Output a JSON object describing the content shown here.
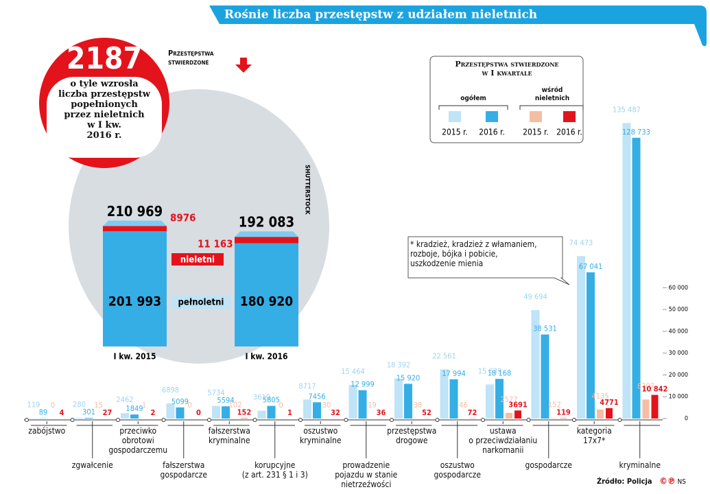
{
  "header": {
    "title": "Rośnie liczba przestępstw z udziałem nieletnich"
  },
  "badge": {
    "number": 2187,
    "text": "o tyle wzrosła\nliczba przestępstw\npopełnionych\nprzez nieletnich\nw I kw.\n2016 r."
  },
  "photo_credit": "SHUTTERSTOCK",
  "annotation": "* kradzież, kradzież z włamaniem,\nrozboje, bójka i pobicie,\nuszkodzenie mienia",
  "source": "Źródło: Policja",
  "agency": "NS",
  "chart_data": [
    {
      "type": "bar",
      "stacked": true,
      "title": "Przestępstwa\nstwierdzone",
      "categories": [
        "I kw. 2015",
        "I kw. 2016"
      ],
      "series": [
        {
          "name": "pełnoletni",
          "color": "#35aee6",
          "values": [
            201993,
            180920
          ],
          "value_labels": [
            "201 993",
            "180 920"
          ]
        },
        {
          "name": "nieletni",
          "color": "#e3131b",
          "values": [
            8976,
            11163
          ],
          "value_labels": [
            "8976",
            "11 163"
          ]
        }
      ],
      "totals": [
        210969,
        192083
      ],
      "total_labels": [
        "210 969",
        "192 083"
      ],
      "ylim": [
        0,
        220000
      ]
    },
    {
      "type": "bar",
      "legend_title": "Przestępstwa stwierdzone\nw I kwartale",
      "legend_groups": [
        "ogółem",
        "wśród\nnieletnich"
      ],
      "categories": [
        "zabójstwo",
        "zgwałcenie",
        "przeciwko\nobrotowi\ngospodarczemu",
        "fałszerstwa\ngospodarcze",
        "fałszerstwa\nkryminalne",
        "korupcyjne\n(z art. 231 § 1 i 3)",
        "oszustwo\nkryminalne",
        "prowadzenie\npojazdu w stanie\nnietrzeźwości",
        "przestępstwa\ndrogowe",
        "oszustwo\ngospodarcze",
        "ustawa\no przeciwdziałaniu\nnarkomanii",
        "gospodarcze",
        "kategoria\n17x7*",
        "kryminalne"
      ],
      "series": [
        {
          "name": "2015 r.",
          "color": "#bfe3f7",
          "values": [
            119,
            280,
            2462,
            6898,
            5734,
            3619,
            8717,
            15464,
            18392,
            22561,
            15639,
            49694,
            74473,
            135487
          ],
          "value_labels": [
            "119",
            "280",
            "2462",
            "6898",
            "5734",
            "3619",
            "8717",
            "15 464",
            "18 392",
            "22 561",
            "15 639",
            "49 694",
            "74 473",
            "135 487"
          ]
        },
        {
          "name": "2016 r.",
          "color": "#35aee6",
          "values": [
            89,
            301,
            1849,
            5099,
            5594,
            5805,
            7456,
            12999,
            15920,
            17994,
            18168,
            38531,
            67041,
            128733
          ],
          "value_labels": [
            "89",
            "301",
            "1849",
            "5099",
            "5594",
            "5805",
            "7456",
            "12 999",
            "15 920",
            "17 994",
            "18 168",
            "38 531",
            "67 041",
            "128 733"
          ]
        },
        {
          "name": "2015 r.",
          "color": "#f6bda3",
          "values": [
            0,
            15,
            1,
            0,
            102,
            0,
            30,
            19,
            38,
            46,
            2577,
            152,
            4135,
            8707
          ],
          "value_labels": [
            "0",
            "15",
            "1",
            "0",
            "102",
            "0",
            "30",
            "19",
            "38",
            "46",
            "2577",
            "152",
            "4135",
            "8707"
          ]
        },
        {
          "name": "2016 r.",
          "color": "#e3131b",
          "values": [
            4,
            27,
            2,
            0,
            152,
            1,
            32,
            36,
            52,
            72,
            3691,
            119,
            4771,
            10842
          ],
          "value_labels": [
            "4",
            "27",
            "2",
            "0",
            "152",
            "1",
            "32",
            "36",
            "52",
            "72",
            "3691",
            "119",
            "4771",
            "10 842"
          ]
        }
      ],
      "ylim": [
        0,
        140000
      ],
      "yticks": [
        0,
        {
          "value": 10000,
          "label": "10 000"
        },
        {
          "value": 20000,
          "label": "20 000"
        },
        {
          "value": 30000,
          "label": "30 000"
        },
        {
          "value": 40000,
          "label": "40 000"
        },
        {
          "value": 50000,
          "label": "50 000"
        },
        {
          "value": 60000,
          "label": "60 000"
        }
      ]
    }
  ]
}
